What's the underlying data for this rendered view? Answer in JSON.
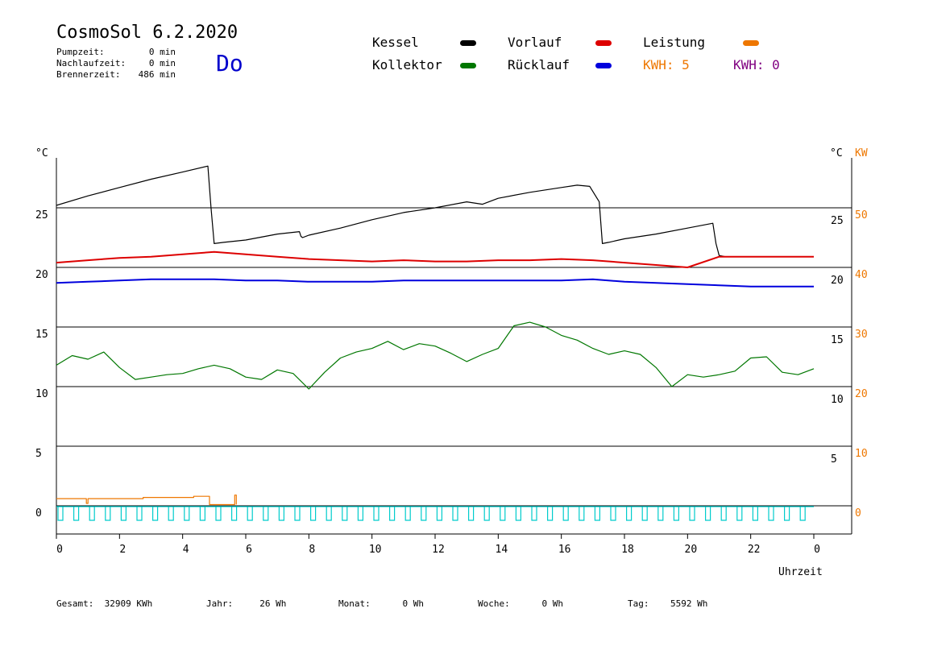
{
  "header": {
    "title": "CosmoSol 6.2.2020",
    "day": "Do",
    "stats": [
      {
        "label": "Pumpzeit:",
        "value": "0 min"
      },
      {
        "label": "Nachlaufzeit:",
        "value": "0 min"
      },
      {
        "label": "Brennerzeit:",
        "value": "486 min"
      }
    ]
  },
  "legend": {
    "kessel": "Kessel",
    "kollektor": "Kollektor",
    "vorlauf": "Vorlauf",
    "ruecklauf": "Rücklauf",
    "leistung": "Leistung",
    "kwh1": "KWH: 5",
    "kwh2": "KWH: 0"
  },
  "colors": {
    "kessel": "#000000",
    "kollektor": "#007700",
    "vorlauf": "#dd0000",
    "ruecklauf": "#0000dd",
    "leistung": "#ee7700",
    "kwh2": "#800080",
    "pump": "#00cccc"
  },
  "footer": {
    "gesamt": "Gesamt:  32909 KWh",
    "jahr": "Jahr:     26 Wh",
    "monat": "Monat:      0 Wh",
    "woche": "Woche:      0 Wh",
    "tag": "Tag:    5592 Wh"
  },
  "chart_data": {
    "type": "line",
    "xlabel": "Uhrzeit",
    "left_unit": "°C",
    "right_unit_temp": "°C",
    "right_unit_power": "KW",
    "x_ticks": [
      "0",
      "2",
      "4",
      "6",
      "8",
      "10",
      "12",
      "14",
      "16",
      "18",
      "20",
      "22",
      "0"
    ],
    "left_ticks": [
      "0",
      "5",
      "10",
      "15",
      "20",
      "25"
    ],
    "right_temp_ticks": [
      "5",
      "10",
      "15",
      "20",
      "25"
    ],
    "right_power_ticks": [
      "0",
      "10",
      "20",
      "30",
      "40",
      "50"
    ],
    "xlim": [
      0,
      24
    ],
    "ylim": [
      -1,
      30
    ],
    "grid": "horizontal",
    "series": [
      {
        "name": "Kessel",
        "key": "kessel",
        "x": [
          0,
          1,
          2,
          3,
          4,
          4.8,
          4.9,
          5.0,
          5.3,
          6,
          7,
          7.7,
          7.75,
          7.8,
          8,
          9,
          10,
          11,
          12,
          13,
          13.5,
          14,
          15,
          16,
          16.5,
          16.9,
          17.2,
          17.3,
          17.5,
          18,
          19,
          20,
          20.8,
          20.9,
          21.0,
          21.2,
          22,
          23,
          24
        ],
        "y": [
          25.2,
          26.0,
          26.7,
          27.4,
          28.0,
          28.5,
          25,
          22.0,
          22.1,
          22.3,
          22.8,
          23.0,
          22.6,
          22.5,
          22.7,
          23.3,
          24.0,
          24.6,
          25.0,
          25.5,
          25.3,
          25.8,
          26.3,
          26.7,
          26.9,
          26.8,
          25.5,
          22.0,
          22.1,
          22.4,
          22.8,
          23.3,
          23.7,
          22,
          21.0,
          20.9,
          20.9,
          20.9,
          20.9
        ]
      },
      {
        "name": "Vorlauf",
        "key": "vorlauf",
        "x": [
          0,
          1,
          2,
          3,
          4,
          5,
          6,
          7,
          8,
          9,
          10,
          11,
          12,
          13,
          14,
          15,
          16,
          17,
          18,
          19,
          20,
          21,
          22,
          23,
          24
        ],
        "y": [
          20.4,
          20.6,
          20.8,
          20.9,
          21.1,
          21.3,
          21.1,
          20.9,
          20.7,
          20.6,
          20.5,
          20.6,
          20.5,
          20.5,
          20.6,
          20.6,
          20.7,
          20.6,
          20.4,
          20.2,
          20.0,
          20.9,
          20.9,
          20.9,
          20.9
        ]
      },
      {
        "name": "Rücklauf",
        "key": "ruecklauf",
        "x": [
          0,
          1,
          2,
          3,
          4,
          5,
          6,
          7,
          8,
          9,
          10,
          11,
          12,
          13,
          14,
          15,
          16,
          17,
          18,
          19,
          20,
          21,
          22,
          23,
          24
        ],
        "y": [
          18.7,
          18.8,
          18.9,
          19.0,
          19.0,
          19.0,
          18.9,
          18.9,
          18.8,
          18.8,
          18.8,
          18.9,
          18.9,
          18.9,
          18.9,
          18.9,
          18.9,
          19.0,
          18.8,
          18.7,
          18.6,
          18.5,
          18.4,
          18.4,
          18.4
        ]
      },
      {
        "name": "Kollektor",
        "key": "kollektor",
        "x": [
          0,
          0.5,
          1,
          1.5,
          2,
          2.5,
          3,
          3.5,
          4,
          4.5,
          5,
          5.5,
          6,
          6.5,
          7,
          7.5,
          8,
          8.5,
          9,
          9.5,
          10,
          10.5,
          11,
          11.5,
          12,
          12.5,
          13,
          13.5,
          14,
          14.5,
          15,
          15.5,
          16,
          16.5,
          17,
          17.5,
          18,
          18.5,
          19,
          19.5,
          20,
          20.5,
          21,
          21.5,
          22,
          22.5,
          23,
          23.5,
          24
        ],
        "y": [
          11.8,
          12.6,
          12.3,
          12.9,
          11.6,
          10.6,
          10.8,
          11.0,
          11.1,
          11.5,
          11.8,
          11.5,
          10.8,
          10.6,
          11.4,
          11.1,
          9.8,
          11.2,
          12.4,
          12.9,
          13.2,
          13.8,
          13.1,
          13.6,
          13.4,
          12.8,
          12.1,
          12.7,
          13.2,
          15.1,
          15.4,
          15.0,
          14.3,
          13.9,
          13.2,
          12.7,
          13.0,
          12.7,
          11.6,
          10.0,
          11.0,
          10.8,
          11.0,
          11.3,
          12.4,
          12.5,
          11.2,
          11.0,
          11.5
        ]
      },
      {
        "name": "Leistung",
        "key": "leistung",
        "x": [
          0,
          0.9,
          0.95,
          1,
          2.7,
          2.75,
          4.3,
          4.35,
          4.8,
          4.85,
          5.6,
          5.65,
          5.7
        ],
        "y": [
          0.6,
          0.6,
          0.2,
          0.6,
          0.6,
          0.7,
          0.7,
          0.8,
          0.8,
          0.1,
          0.1,
          0.9,
          0.1
        ]
      }
    ]
  }
}
